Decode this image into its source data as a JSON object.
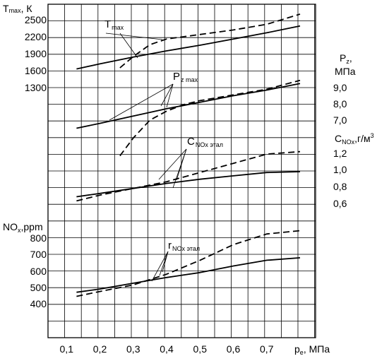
{
  "chart_data": {
    "type": "line",
    "x_axis": {
      "label_main": "p",
      "label_sub": "e",
      "label_unit": ", МПа",
      "ticks": [
        0.1,
        0.2,
        0.3,
        0.4,
        0.5,
        0.6,
        0.7
      ],
      "tick_labels": [
        "0,1",
        "0,2",
        "0,3",
        "0,4",
        "0,5",
        "0,6",
        "0,7"
      ],
      "range": [
        0.0,
        0.8
      ],
      "grid": true
    },
    "axes": {
      "t": {
        "label_main": "T",
        "label_sub": "max",
        "label_unit": ", К",
        "tick_labels": [
          "2500",
          "2200",
          "1900",
          "1600",
          "1300"
        ],
        "ticks": [
          2500,
          2200,
          1900,
          1600,
          1300
        ],
        "side": "left"
      },
      "pz": {
        "label_main": "P",
        "label_sub": "z",
        "label_unit": ",",
        "label_line2": "МПа",
        "tick_labels": [
          "9,0",
          "8,0",
          "7,0"
        ],
        "ticks": [
          9.0,
          8.0,
          7.0
        ],
        "side": "right"
      },
      "c": {
        "label_main": "C",
        "label_sub": "NOx",
        "label_unit": ",г/м",
        "label_sup": "3",
        "tick_labels": [
          "1,2",
          "1,0",
          "0,8",
          "0,6"
        ],
        "ticks": [
          1.2,
          1.0,
          0.8,
          0.6
        ],
        "side": "right"
      },
      "nox": {
        "label_main": "NO",
        "label_sub": "x",
        "label_unit": ",ppm",
        "tick_labels": [
          "800",
          "700",
          "600",
          "500",
          "400"
        ],
        "ticks": [
          800,
          700,
          600,
          500,
          400
        ],
        "side": "left"
      }
    },
    "series": [
      {
        "axis": "t",
        "style": "solid",
        "x": [
          0.13,
          0.2,
          0.3,
          0.4,
          0.5,
          0.6,
          0.7,
          0.8
        ],
        "y": [
          1630,
          1720,
          1840,
          1950,
          2050,
          2160,
          2270,
          2390
        ]
      },
      {
        "axis": "t",
        "style": "dashed",
        "x": [
          0.26,
          0.3,
          0.35,
          0.4,
          0.5,
          0.6,
          0.7,
          0.8
        ],
        "y": [
          1650,
          1850,
          2060,
          2160,
          2240,
          2320,
          2420,
          2600
        ]
      },
      {
        "axis": "pz",
        "style": "solid",
        "x": [
          0.13,
          0.2,
          0.3,
          0.4,
          0.5,
          0.6,
          0.7,
          0.8
        ],
        "y": [
          6.5,
          6.8,
          7.25,
          7.7,
          8.1,
          8.5,
          8.85,
          9.25
        ]
      },
      {
        "axis": "pz",
        "style": "dashed",
        "x": [
          0.26,
          0.3,
          0.35,
          0.4,
          0.45,
          0.5,
          0.6,
          0.7,
          0.8
        ],
        "y": [
          4.8,
          5.9,
          7.0,
          7.55,
          7.95,
          8.2,
          8.55,
          8.9,
          9.45
        ]
      },
      {
        "axis": "c",
        "style": "solid",
        "x": [
          0.13,
          0.2,
          0.3,
          0.4,
          0.5,
          0.6,
          0.7,
          0.8
        ],
        "y": [
          0.68,
          0.72,
          0.78,
          0.84,
          0.89,
          0.93,
          0.97,
          0.98
        ]
      },
      {
        "axis": "c",
        "style": "dashed",
        "x": [
          0.13,
          0.2,
          0.3,
          0.4,
          0.5,
          0.6,
          0.7,
          0.8
        ],
        "y": [
          0.63,
          0.7,
          0.78,
          0.86,
          0.97,
          1.08,
          1.19,
          1.22
        ]
      },
      {
        "axis": "nox",
        "style": "solid",
        "x": [
          0.13,
          0.2,
          0.3,
          0.4,
          0.5,
          0.6,
          0.7,
          0.8
        ],
        "y": [
          470,
          490,
          525,
          560,
          590,
          630,
          665,
          680
        ]
      },
      {
        "axis": "nox",
        "style": "dashed",
        "x": [
          0.13,
          0.2,
          0.3,
          0.4,
          0.5,
          0.6,
          0.7,
          0.8
        ],
        "y": [
          445,
          475,
          515,
          580,
          665,
          760,
          825,
          845
        ]
      }
    ],
    "annotations": [
      {
        "main": "T",
        "sub": "max",
        "target": "t"
      },
      {
        "main": "P",
        "sub": "z max",
        "target": "pz"
      },
      {
        "main": "C",
        "sub": "NOx этал",
        "target": "c"
      },
      {
        "main": "r",
        "sub": "NOx этал",
        "target": "nox"
      }
    ]
  }
}
